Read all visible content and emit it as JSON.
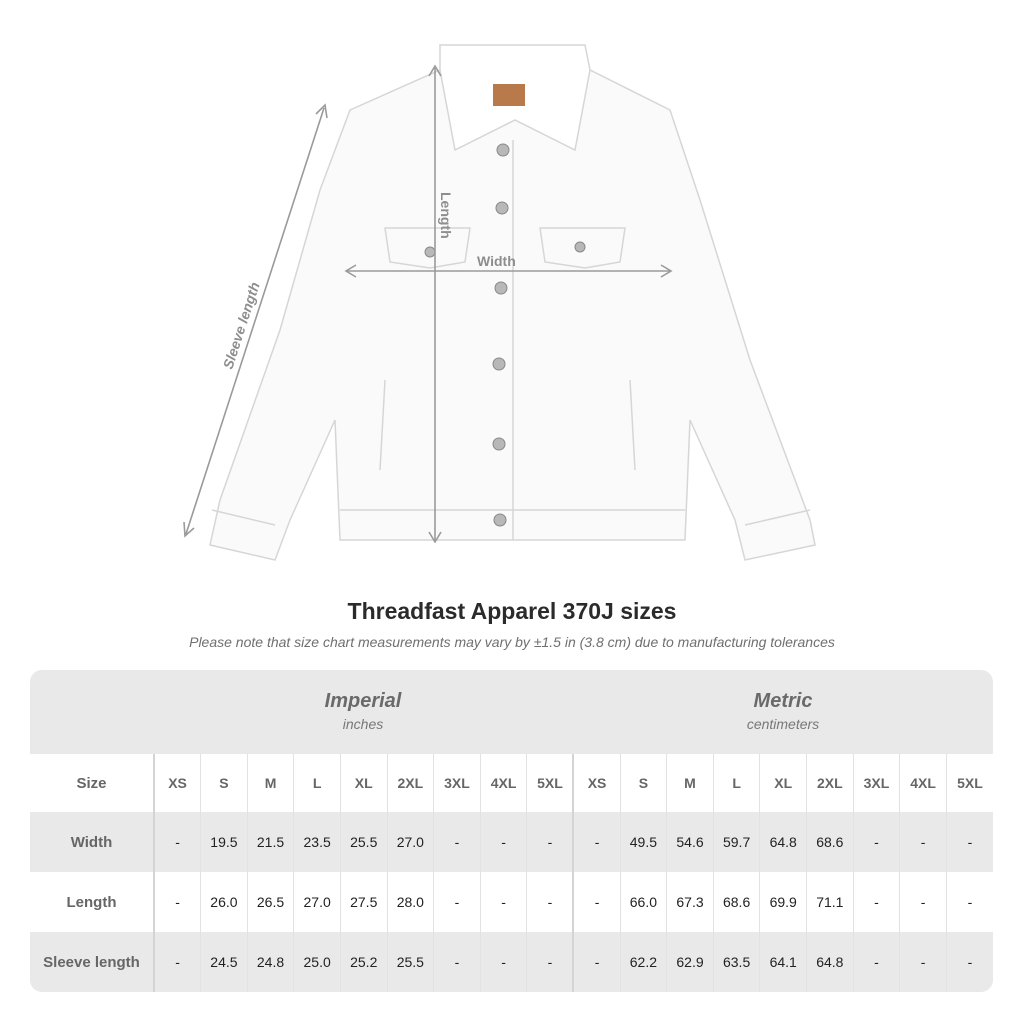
{
  "diagram_labels": {
    "length": "Length",
    "width": "Width",
    "sleeve_length": "Sleeve length"
  },
  "title": "Threadfast Apparel 370J sizes",
  "subtitle": "Please note that size chart measurements may vary by ±1.5 in (3.8 cm) due to manufacturing tolerances",
  "groups": [
    {
      "name": "Imperial",
      "unit": "inches"
    },
    {
      "name": "Metric",
      "unit": "centimeters"
    }
  ],
  "size_label": "Size",
  "sizes": [
    "XS",
    "S",
    "M",
    "L",
    "XL",
    "2XL",
    "3XL",
    "4XL",
    "5XL"
  ],
  "rows": [
    {
      "label": "Width",
      "imperial": [
        "-",
        "19.5",
        "21.5",
        "23.5",
        "25.5",
        "27.0",
        "-",
        "-",
        "-"
      ],
      "metric": [
        "-",
        "49.5",
        "54.6",
        "59.7",
        "64.8",
        "68.6",
        "-",
        "-",
        "-"
      ]
    },
    {
      "label": "Length",
      "imperial": [
        "-",
        "26.0",
        "26.5",
        "27.0",
        "27.5",
        "28.0",
        "-",
        "-",
        "-"
      ],
      "metric": [
        "-",
        "66.0",
        "67.3",
        "68.6",
        "69.9",
        "71.1",
        "-",
        "-",
        "-"
      ]
    },
    {
      "label": "Sleeve length",
      "imperial": [
        "-",
        "24.5",
        "24.8",
        "25.0",
        "25.2",
        "25.5",
        "-",
        "-",
        "-"
      ],
      "metric": [
        "-",
        "62.2",
        "62.9",
        "63.5",
        "64.1",
        "64.8",
        "-",
        "-",
        "-"
      ]
    }
  ],
  "colors": {
    "band": "#e9e9e9",
    "jacket": "#ffffff",
    "tag": "#b87a4b",
    "measure_line": "#9a9a9a"
  }
}
